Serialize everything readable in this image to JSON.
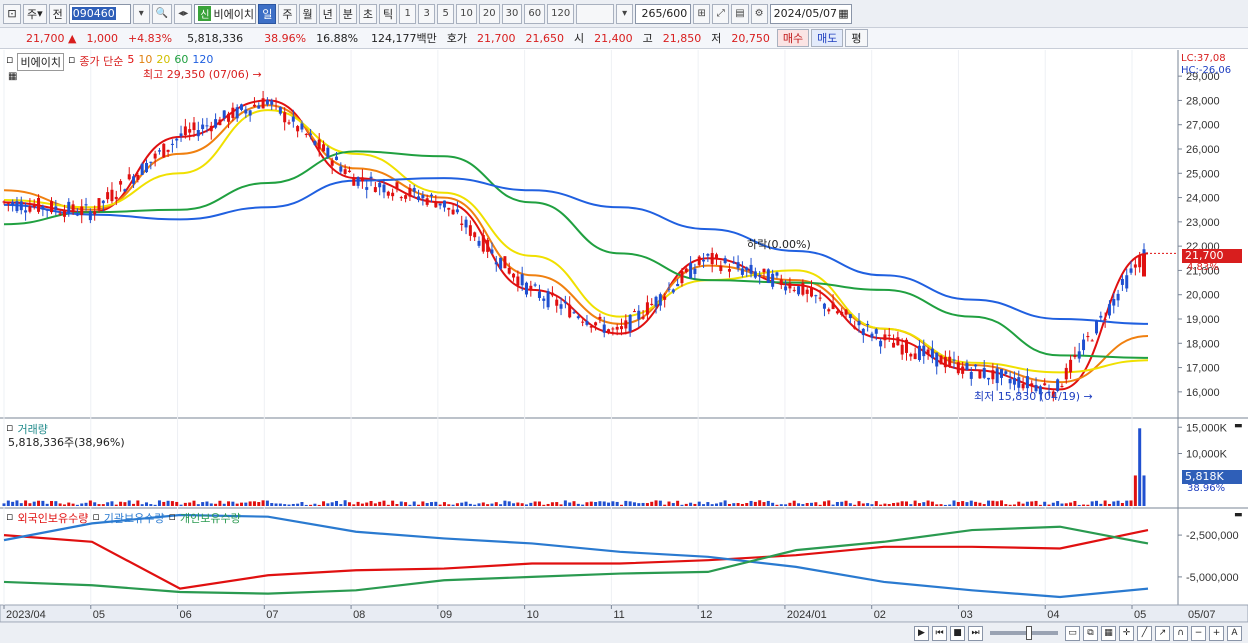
{
  "toolbar": {
    "period_type": "주",
    "prev_label": "전",
    "stock_code": "090460",
    "stock_name": "비에이치",
    "shin_badge": "신",
    "timeframes": [
      "일",
      "주",
      "월",
      "년",
      "분",
      "초",
      "틱"
    ],
    "active_timeframe": "일",
    "intervals": [
      "1",
      "3",
      "5",
      "10",
      "20",
      "30",
      "60",
      "120"
    ],
    "count_display": "265",
    "count_max": "/600",
    "date": "2024/05/07"
  },
  "quote": {
    "price": "21,700",
    "change_arrow": "▲",
    "change": "1,000",
    "change_pct": "+4.83%",
    "volume": "5,818,336",
    "vol_ratio": "38.96%",
    "turnover": "16.88%",
    "amount": "124,177백만",
    "hoga_label": "호가",
    "ask": "21,700",
    "bid": "21,650",
    "open_label": "시",
    "open": "21,400",
    "high_label": "고",
    "high": "21,850",
    "low_label": "저",
    "low": "20,750",
    "buy_label": "매수",
    "sell_label": "매도",
    "eval_label": "평"
  },
  "price_panel": {
    "stock_name": "비에이치",
    "ma_label": "종가 단순",
    "ma_periods": [
      "5",
      "10",
      "20",
      "60",
      "120"
    ],
    "ma_colors": [
      "#e01010",
      "#f08010",
      "#f0e000",
      "#20a040",
      "#2060e0"
    ],
    "high_marker": "최고 29,350 (07/06)",
    "low_marker": "최저 15,830 (04/19)",
    "fall_marker": "하락(0.00%)",
    "lc": "LC:37,08",
    "hc": "HC:-26,06",
    "current_price_tag": "21,700",
    "current_pct_tag": "4.83%",
    "y_ticks": [
      "29,000",
      "28,000",
      "27,000",
      "26,000",
      "25,000",
      "24,000",
      "23,000",
      "22,000",
      "21,000",
      "20,000",
      "19,000",
      "18,000",
      "17,000",
      "16,000"
    ]
  },
  "volume_panel": {
    "title": "거래량",
    "value_text": "5,818,336주(38,96%)",
    "y_ticks": [
      "15,000K",
      "10,000K"
    ],
    "current_tag": "5,818K",
    "current_pct": "38.96%"
  },
  "holdings_panel": {
    "series_labels": [
      "외국인보유수량",
      "기관보유수량",
      "개인보유수량"
    ],
    "series_colors": [
      "#e01010",
      "#2a7ad0",
      "#2a9a50"
    ],
    "y_ticks": [
      "-2,500,000",
      "-5,000,000"
    ]
  },
  "x_axis": {
    "labels": [
      "2023/04",
      "05",
      "06",
      "07",
      "08",
      "09",
      "10",
      "11",
      "12",
      "2024/01",
      "02",
      "03",
      "04",
      "05",
      "05/07"
    ]
  },
  "chart_data": {
    "type": "candlestick",
    "x_range": [
      "2023/04",
      "2024/05/07"
    ],
    "ylim": [
      15500,
      29500
    ],
    "series": [
      {
        "name": "종가 단순 5",
        "color": "#e01010",
        "x": [
          "2023/04",
          "2023/05",
          "2023/06",
          "2023/07",
          "2023/08",
          "2023/09",
          "2023/10",
          "2023/11",
          "2023/12",
          "2024/01",
          "2024/02",
          "2024/03",
          "2024/04",
          "2024/05/07"
        ],
        "values": [
          23800,
          23400,
          26500,
          28000,
          24800,
          23800,
          20200,
          18400,
          21500,
          20400,
          18200,
          16900,
          16100,
          21700
        ]
      },
      {
        "name": "종가 단순 10",
        "color": "#f08010",
        "x": [
          "2023/04",
          "2023/05",
          "2023/06",
          "2023/07",
          "2023/08",
          "2023/09",
          "2023/10",
          "2023/11",
          "2023/12",
          "2024/01",
          "2024/02",
          "2024/03",
          "2024/04",
          "2024/05/07"
        ],
        "values": [
          24300,
          23500,
          25800,
          27800,
          25200,
          24000,
          20800,
          18800,
          21200,
          20600,
          18600,
          17100,
          16400,
          18300
        ]
      },
      {
        "name": "종가 단순 20",
        "color": "#f0e000",
        "x": [
          "2023/04",
          "2023/05",
          "2023/06",
          "2023/07",
          "2023/08",
          "2023/09",
          "2023/10",
          "2023/11",
          "2023/12",
          "2024/01",
          "2024/02",
          "2024/03",
          "2024/04",
          "2024/05/07"
        ],
        "values": [
          23900,
          23600,
          25000,
          27600,
          25800,
          24200,
          21600,
          19100,
          20600,
          21000,
          18600,
          17200,
          16800,
          17300
        ]
      },
      {
        "name": "종가 단순 60",
        "color": "#20a040",
        "x": [
          "2023/04",
          "2023/05",
          "2023/06",
          "2023/07",
          "2023/08",
          "2023/09",
          "2023/10",
          "2023/11",
          "2023/12",
          "2024/01",
          "2024/02",
          "2024/03",
          "2024/04",
          "2024/05/07"
        ],
        "values": [
          22900,
          23400,
          23500,
          24600,
          25900,
          25700,
          23800,
          21700,
          20600,
          20500,
          20200,
          19100,
          17500,
          17400
        ]
      },
      {
        "name": "종가 단순 120",
        "color": "#2060e0",
        "x": [
          "2023/04",
          "2023/05",
          "2023/06",
          "2023/07",
          "2023/08",
          "2023/09",
          "2023/10",
          "2023/11",
          "2023/12",
          "2024/01",
          "2024/02",
          "2024/03",
          "2024/04",
          "2024/05/07"
        ],
        "values": [
          23700,
          23300,
          23100,
          23600,
          24700,
          24800,
          24300,
          23600,
          22700,
          21800,
          20800,
          19800,
          19000,
          18800
        ]
      }
    ],
    "current_price": 21700,
    "volume_ylim": [
      0,
      16000
    ],
    "holdings_ylim": [
      -6500000,
      -1000000
    ]
  }
}
